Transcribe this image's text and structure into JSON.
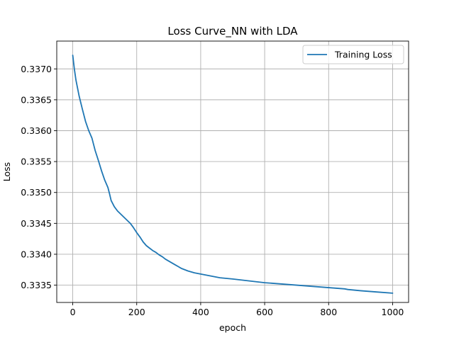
{
  "chart_data": {
    "type": "line",
    "title": "Loss Curve_NN with LDA",
    "xlabel": "epoch",
    "ylabel": "Loss",
    "xlim": [
      -50,
      1050
    ],
    "ylim": [
      0.33322,
      0.33745
    ],
    "xticks": [
      0,
      200,
      400,
      600,
      800,
      1000
    ],
    "xtick_labels": [
      "0",
      "200",
      "400",
      "600",
      "800",
      "1000"
    ],
    "yticks": [
      0.3335,
      0.334,
      0.3345,
      0.335,
      0.3355,
      0.336,
      0.3365,
      0.337
    ],
    "ytick_labels": [
      "0.3335",
      "0.3340",
      "0.3345",
      "0.3350",
      "0.3355",
      "0.3360",
      "0.3365",
      "0.3370"
    ],
    "grid": true,
    "legend": {
      "placement": "top-right",
      "entries": [
        "Training Loss"
      ]
    },
    "colors": {
      "series": "#1f77b4",
      "grid": "#b0b0b0"
    },
    "series": [
      {
        "name": "Training Loss",
        "x": [
          0,
          5,
          10,
          20,
          30,
          40,
          50,
          60,
          65,
          70,
          80,
          90,
          100,
          110,
          115,
          120,
          130,
          140,
          150,
          160,
          170,
          180,
          190,
          200,
          210,
          220,
          230,
          240,
          250,
          260,
          270,
          280,
          290,
          300,
          310,
          320,
          330,
          340,
          350,
          360,
          380,
          400,
          430,
          460,
          500,
          550,
          600,
          650,
          700,
          750,
          800,
          850,
          860,
          900,
          950,
          1000
        ],
        "y": [
          0.33722,
          0.337,
          0.33682,
          0.33656,
          0.33635,
          0.33615,
          0.336,
          0.33588,
          0.33578,
          0.33568,
          0.33552,
          0.33535,
          0.3352,
          0.33508,
          0.33498,
          0.33487,
          0.33477,
          0.3347,
          0.33465,
          0.3346,
          0.33455,
          0.3345,
          0.33443,
          0.33435,
          0.33428,
          0.3342,
          0.33414,
          0.3341,
          0.33406,
          0.33403,
          0.33399,
          0.33396,
          0.33392,
          0.33389,
          0.33386,
          0.33383,
          0.3338,
          0.33377,
          0.33375,
          0.33373,
          0.3337,
          0.33368,
          0.33365,
          0.33362,
          0.3336,
          0.33357,
          0.33354,
          0.33352,
          0.3335,
          0.33348,
          0.33346,
          0.33344,
          0.33343,
          0.33341,
          0.33339,
          0.33337
        ]
      }
    ]
  }
}
